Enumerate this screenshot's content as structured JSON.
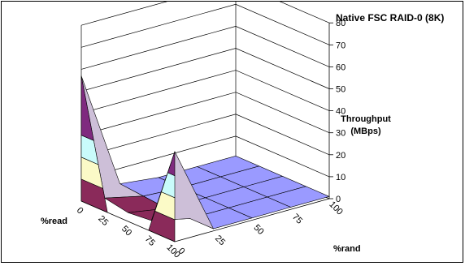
{
  "chart_data": {
    "type": "surface",
    "title": "Native FSC RAID-0 (8K)",
    "zlabel_line1": "Throughput",
    "zlabel_line2": "(MBps)",
    "read_label": "%read",
    "rand_label": "%rand",
    "read_ticks": [
      "0",
      "25",
      "50",
      "75",
      "100"
    ],
    "rand_ticks": [
      "0",
      "25",
      "50",
      "75",
      "100"
    ],
    "z_ticks": [
      "0",
      "10",
      "20",
      "30",
      "40",
      "50",
      "60",
      "70",
      "80"
    ],
    "zlim": [
      0,
      80
    ],
    "read_values": [
      0,
      25,
      50,
      75,
      100
    ],
    "rand_values": [
      0,
      25,
      50,
      75,
      100
    ],
    "throughput": [
      [
        57,
        3,
        1,
        1,
        1
      ],
      [
        6,
        2,
        1,
        1,
        1
      ],
      [
        4,
        1,
        1,
        1,
        1
      ],
      [
        5,
        1,
        1,
        1,
        1
      ],
      [
        41,
        1,
        1,
        1,
        1
      ]
    ],
    "band_colors": [
      "#7f5a83",
      "#cdbfd8",
      "#9a9aff",
      "#fbfac7",
      "#c9fbfb",
      "#91205e"
    ]
  }
}
